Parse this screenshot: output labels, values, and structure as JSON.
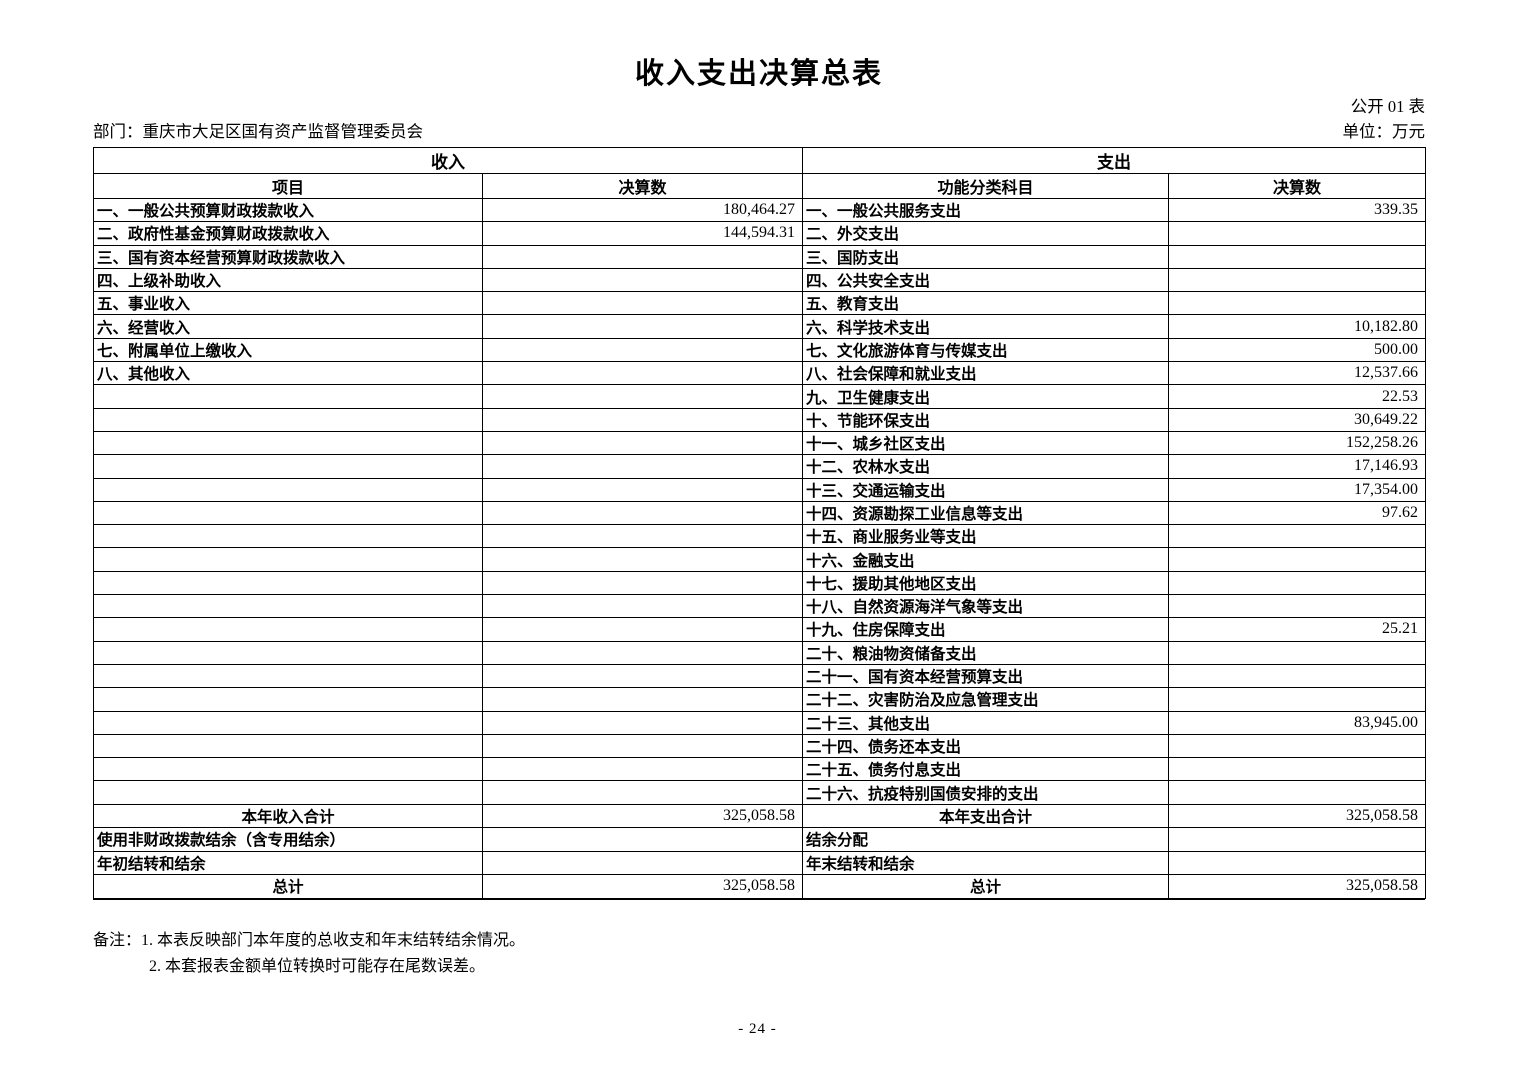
{
  "header": {
    "title": "收入支出决算总表",
    "table_code": "公开 01 表",
    "department": "部门：重庆市大足区国有资产监督管理委员会",
    "unit": "单位：万元"
  },
  "table": {
    "income_header": "收入",
    "expense_header": "支出",
    "columns": [
      "项目",
      "决算数",
      "功能分类科目",
      "决算数"
    ],
    "rows": [
      {
        "income_item": "一、一般公共预算财政拨款收入",
        "income_value": "180,464.27",
        "expense_item": "一、一般公共服务支出",
        "expense_value": "339.35"
      },
      {
        "income_item": "二、政府性基金预算财政拨款收入",
        "income_value": "144,594.31",
        "expense_item": "二、外交支出",
        "expense_value": ""
      },
      {
        "income_item": "三、国有资本经营预算财政拨款收入",
        "income_value": "",
        "expense_item": "三、国防支出",
        "expense_value": ""
      },
      {
        "income_item": "四、上级补助收入",
        "income_value": "",
        "expense_item": "四、公共安全支出",
        "expense_value": ""
      },
      {
        "income_item": "五、事业收入",
        "income_value": "",
        "expense_item": "五、教育支出",
        "expense_value": ""
      },
      {
        "income_item": "六、经营收入",
        "income_value": "",
        "expense_item": "六、科学技术支出",
        "expense_value": "10,182.80"
      },
      {
        "income_item": "七、附属单位上缴收入",
        "income_value": "",
        "expense_item": "七、文化旅游体育与传媒支出",
        "expense_value": "500.00"
      },
      {
        "income_item": "八、其他收入",
        "income_value": "",
        "expense_item": "八、社会保障和就业支出",
        "expense_value": "12,537.66"
      },
      {
        "income_item": "",
        "income_value": "",
        "expense_item": "九、卫生健康支出",
        "expense_value": "22.53"
      },
      {
        "income_item": "",
        "income_value": "",
        "expense_item": "十、节能环保支出",
        "expense_value": "30,649.22"
      },
      {
        "income_item": "",
        "income_value": "",
        "expense_item": "十一、城乡社区支出",
        "expense_value": "152,258.26"
      },
      {
        "income_item": "",
        "income_value": "",
        "expense_item": "十二、农林水支出",
        "expense_value": "17,146.93"
      },
      {
        "income_item": "",
        "income_value": "",
        "expense_item": "十三、交通运输支出",
        "expense_value": "17,354.00"
      },
      {
        "income_item": "",
        "income_value": "",
        "expense_item": "十四、资源勘探工业信息等支出",
        "expense_value": "97.62"
      },
      {
        "income_item": "",
        "income_value": "",
        "expense_item": "十五、商业服务业等支出",
        "expense_value": ""
      },
      {
        "income_item": "",
        "income_value": "",
        "expense_item": "十六、金融支出",
        "expense_value": ""
      },
      {
        "income_item": "",
        "income_value": "",
        "expense_item": "十七、援助其他地区支出",
        "expense_value": ""
      },
      {
        "income_item": "",
        "income_value": "",
        "expense_item": "十八、自然资源海洋气象等支出",
        "expense_value": ""
      },
      {
        "income_item": "",
        "income_value": "",
        "expense_item": "十九、住房保障支出",
        "expense_value": "25.21"
      },
      {
        "income_item": "",
        "income_value": "",
        "expense_item": "二十、粮油物资储备支出",
        "expense_value": ""
      },
      {
        "income_item": "",
        "income_value": "",
        "expense_item": "二十一、国有资本经营预算支出",
        "expense_value": ""
      },
      {
        "income_item": "",
        "income_value": "",
        "expense_item": "二十二、灾害防治及应急管理支出",
        "expense_value": ""
      },
      {
        "income_item": "",
        "income_value": "",
        "expense_item": "二十三、其他支出",
        "expense_value": "83,945.00"
      },
      {
        "income_item": "",
        "income_value": "",
        "expense_item": "二十四、债务还本支出",
        "expense_value": ""
      },
      {
        "income_item": "",
        "income_value": "",
        "expense_item": "二十五、债务付息支出",
        "expense_value": ""
      },
      {
        "income_item": "",
        "income_value": "",
        "expense_item": "二十六、抗疫特别国债安排的支出",
        "expense_value": ""
      }
    ],
    "footer_rows": [
      {
        "income_item": "本年收入合计",
        "income_value": "325,058.58",
        "expense_item": "本年支出合计",
        "expense_value": "325,058.58",
        "center": true
      },
      {
        "income_item": "使用非财政拨款结余（含专用结余）",
        "income_value": "",
        "expense_item": "结余分配",
        "expense_value": "",
        "center": false
      },
      {
        "income_item": "年初结转和结余",
        "income_value": "",
        "expense_item": "年末结转和结余",
        "expense_value": "",
        "center": false
      },
      {
        "income_item": "总计",
        "income_value": "325,058.58",
        "expense_item": "总计",
        "expense_value": "325,058.58",
        "center": true
      }
    ]
  },
  "notes": {
    "line1": "备注：1. 本表反映部门本年度的总收支和年末结转结余情况。",
    "line2": "2. 本套报表金额单位转换时可能存在尾数误差。"
  },
  "footer": {
    "page_number": "- 24 -"
  },
  "colors": {
    "ink": "#000000",
    "paper": "#ffffff"
  }
}
